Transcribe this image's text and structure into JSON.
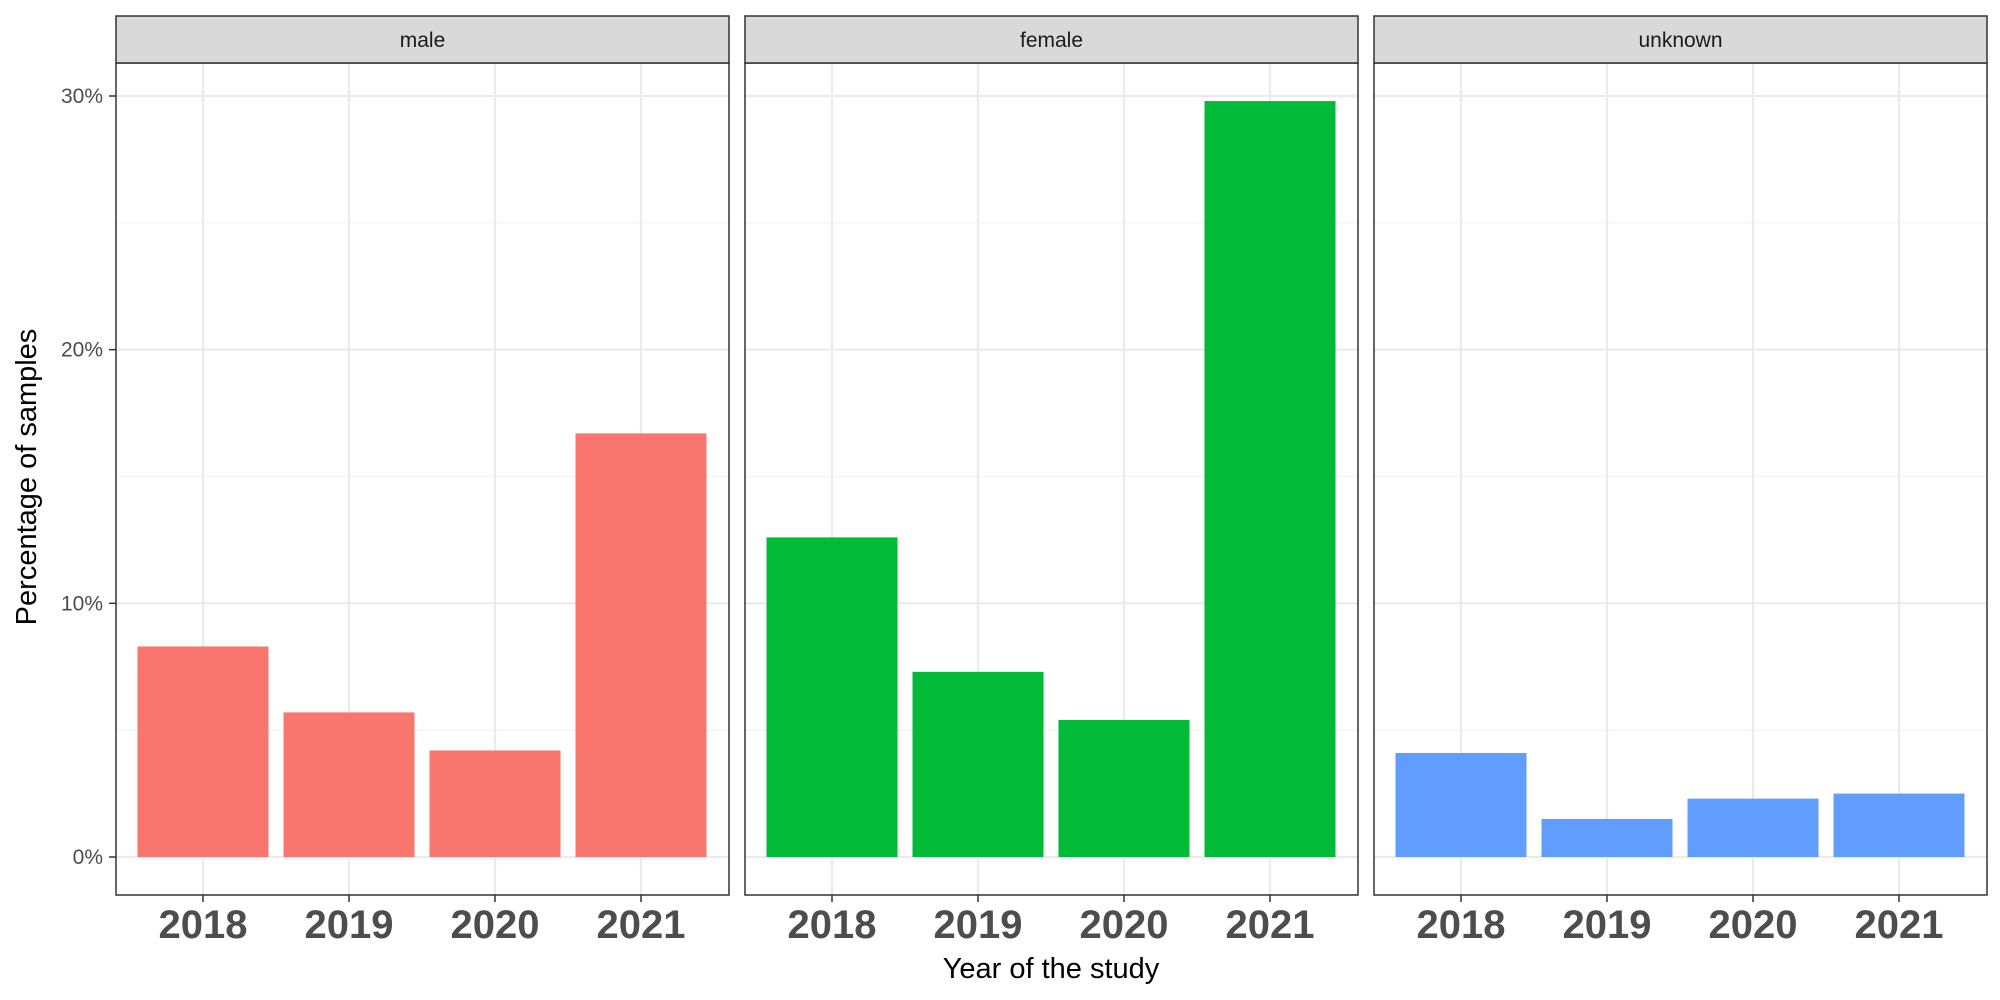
{
  "chart_data": {
    "type": "bar",
    "xlabel": "Year of the study",
    "ylabel": "Percentage of samples",
    "categories": [
      "2018",
      "2019",
      "2020",
      "2021"
    ],
    "ylim": [
      0,
      31.5
    ],
    "yticks": [
      0,
      10,
      20,
      30
    ],
    "ytick_labels": [
      "0%",
      "10%",
      "20%",
      "30%"
    ],
    "grid": true,
    "legend": "none",
    "panels": [
      {
        "name": "male",
        "color": "#F8766D",
        "values": [
          8.3,
          5.7,
          4.2,
          16.7
        ]
      },
      {
        "name": "female",
        "color": "#00BA38",
        "values": [
          12.6,
          7.3,
          5.4,
          29.8
        ]
      },
      {
        "name": "unknown",
        "color": "#619CFF",
        "values": [
          4.1,
          1.5,
          2.3,
          2.5
        ]
      }
    ]
  }
}
